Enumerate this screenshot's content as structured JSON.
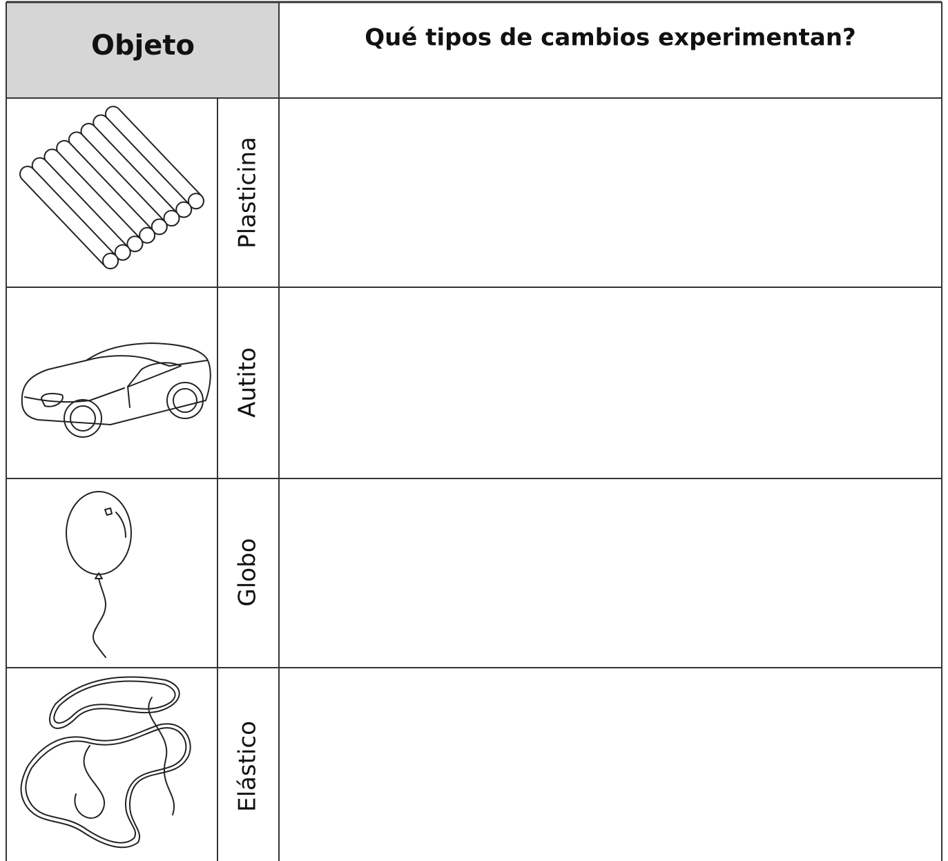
{
  "table": {
    "header": [
      "Objeto",
      "Qué tipos de cambios experimentan?"
    ],
    "rows": [
      {
        "label": "Plasticina"
      },
      {
        "label": "Autito"
      },
      {
        "label": "Globo"
      },
      {
        "label": "Elástico"
      }
    ]
  }
}
